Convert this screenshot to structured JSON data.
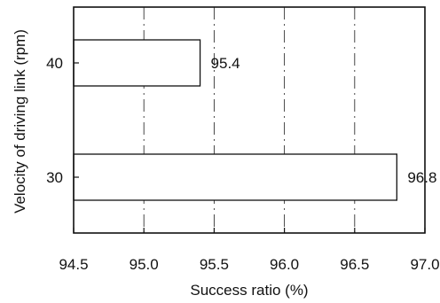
{
  "chart_data": {
    "type": "bar",
    "orientation": "horizontal",
    "title": "",
    "xlabel": "Success ratio (%)",
    "ylabel": "Velocity of driving link (rpm)",
    "categories": [
      "40",
      "30"
    ],
    "values": [
      95.4,
      96.8
    ],
    "data_labels": [
      "95.4",
      "96.8"
    ],
    "xlim": [
      94.5,
      97.0
    ],
    "xticks": [
      "94.5",
      "95.0",
      "95.5",
      "96.0",
      "96.5",
      "97.0"
    ],
    "grid": "vertical-dashdot",
    "legend": "none",
    "colors": {
      "bar_fill": "#ffffff",
      "bar_edge": "#111111",
      "axis": "#111111"
    }
  }
}
